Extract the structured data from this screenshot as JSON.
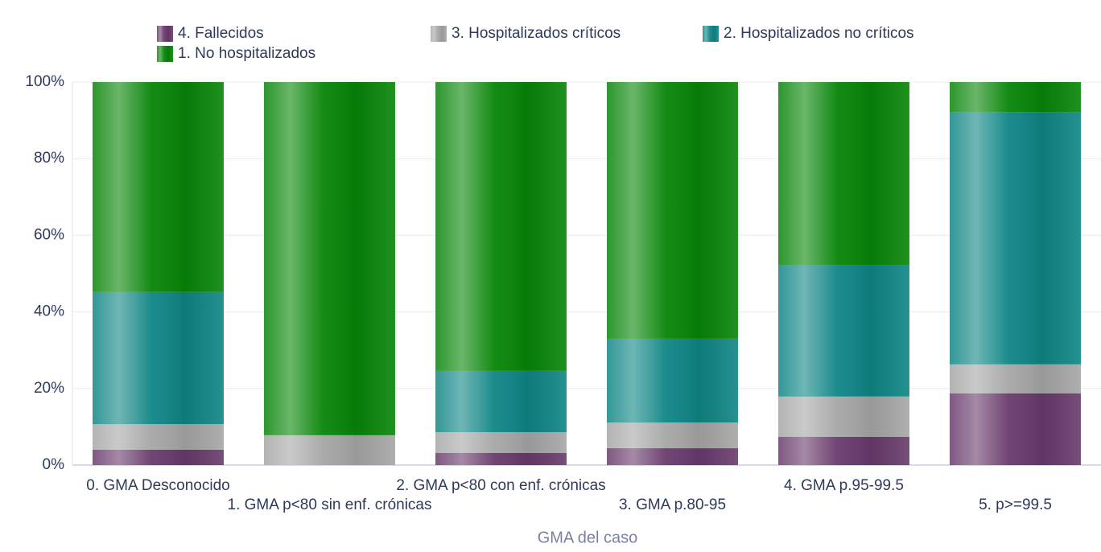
{
  "chart_data": {
    "type": "stacked_bar",
    "x_label": "GMA del caso",
    "categories": [
      "0. GMA Desconocido",
      "1. GMA p<80 sin enf. crónicas",
      "2. GMA p<80 con enf. crónicas",
      "3. GMA p.80-95",
      "4. GMA p.95-99.5",
      "5. p>=99.5"
    ],
    "series": [
      {
        "name": "4. Fallecidos",
        "color": "#693a6c",
        "values": [
          4.0,
          0,
          3.2,
          4.4,
          7.4,
          18.7
        ]
      },
      {
        "name": "3. Hospitalizados críticos",
        "color": "#a6a6a6",
        "values": [
          6.7,
          7.8,
          5.4,
          6.7,
          10.5,
          7.6
        ]
      },
      {
        "name": "2. Hospitalizados no críticos",
        "color": "#0f8585",
        "values": [
          34.5,
          0,
          16.0,
          21.9,
          34.4,
          65.9
        ]
      },
      {
        "name": "1. No hospitalizados",
        "color": "#078507",
        "values": [
          54.8,
          92.2,
          75.4,
          67.0,
          47.7,
          7.8
        ]
      }
    ],
    "ylim": [
      0,
      100
    ],
    "yticks": [
      {
        "value": 0,
        "label": "0%"
      },
      {
        "value": 20,
        "label": "20%"
      },
      {
        "value": 40,
        "label": "40%"
      },
      {
        "value": 60,
        "label": "60%"
      },
      {
        "value": 80,
        "label": "80%"
      },
      {
        "value": 100,
        "label": "100%"
      }
    ],
    "grid": true
  }
}
